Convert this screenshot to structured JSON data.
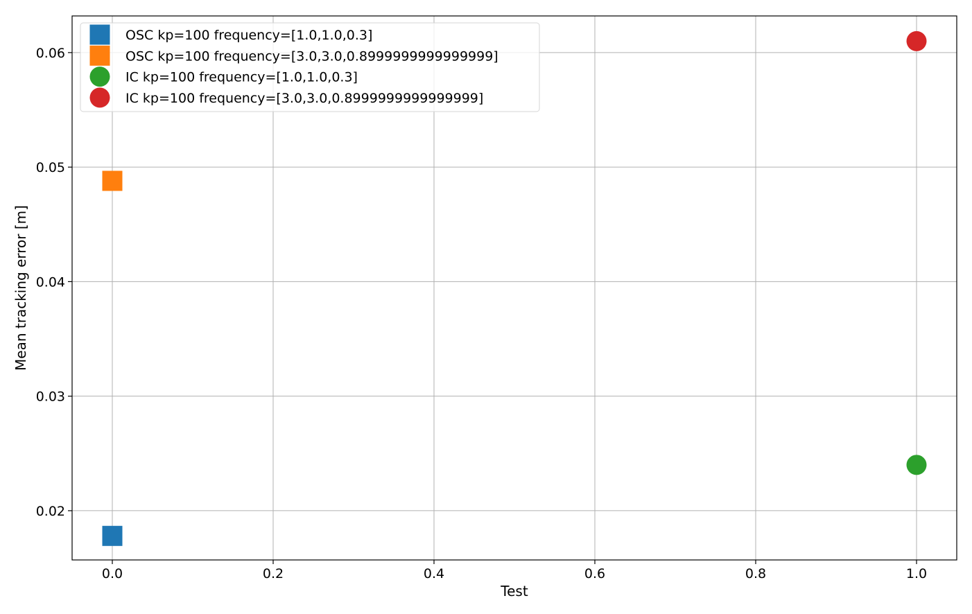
{
  "chart_data": {
    "type": "scatter",
    "title": "",
    "xlabel": "Test",
    "ylabel": "Mean tracking error [m]",
    "xlim": [
      -0.05,
      1.05
    ],
    "ylim": [
      0.0157,
      0.0632
    ],
    "xticks": [
      0.0,
      0.2,
      0.4,
      0.6,
      0.8,
      1.0
    ],
    "xtick_labels": [
      "0.0",
      "0.2",
      "0.4",
      "0.6",
      "0.8",
      "1.0"
    ],
    "yticks": [
      0.02,
      0.03,
      0.04,
      0.05,
      0.06
    ],
    "ytick_labels": [
      "0.02",
      "0.03",
      "0.04",
      "0.05",
      "0.06"
    ],
    "grid": true,
    "legend_position": "top-left",
    "series": [
      {
        "name": "OSC kp=100 frequency=[1.0,1.0,0.3]",
        "marker": "square",
        "color": "#1f77b4",
        "x": [
          0.0
        ],
        "y": [
          0.0178
        ]
      },
      {
        "name": "OSC kp=100 frequency=[3.0,3.0,0.8999999999999999]",
        "marker": "square",
        "color": "#ff7f0e",
        "x": [
          0.0
        ],
        "y": [
          0.0488
        ]
      },
      {
        "name": "IC kp=100 frequency=[1.0,1.0,0.3]",
        "marker": "circle",
        "color": "#2ca02c",
        "x": [
          1.0
        ],
        "y": [
          0.024
        ]
      },
      {
        "name": "IC kp=100 frequency=[3.0,3.0,0.8999999999999999]",
        "marker": "circle",
        "color": "#d62728",
        "x": [
          1.0
        ],
        "y": [
          0.061
        ]
      }
    ]
  }
}
